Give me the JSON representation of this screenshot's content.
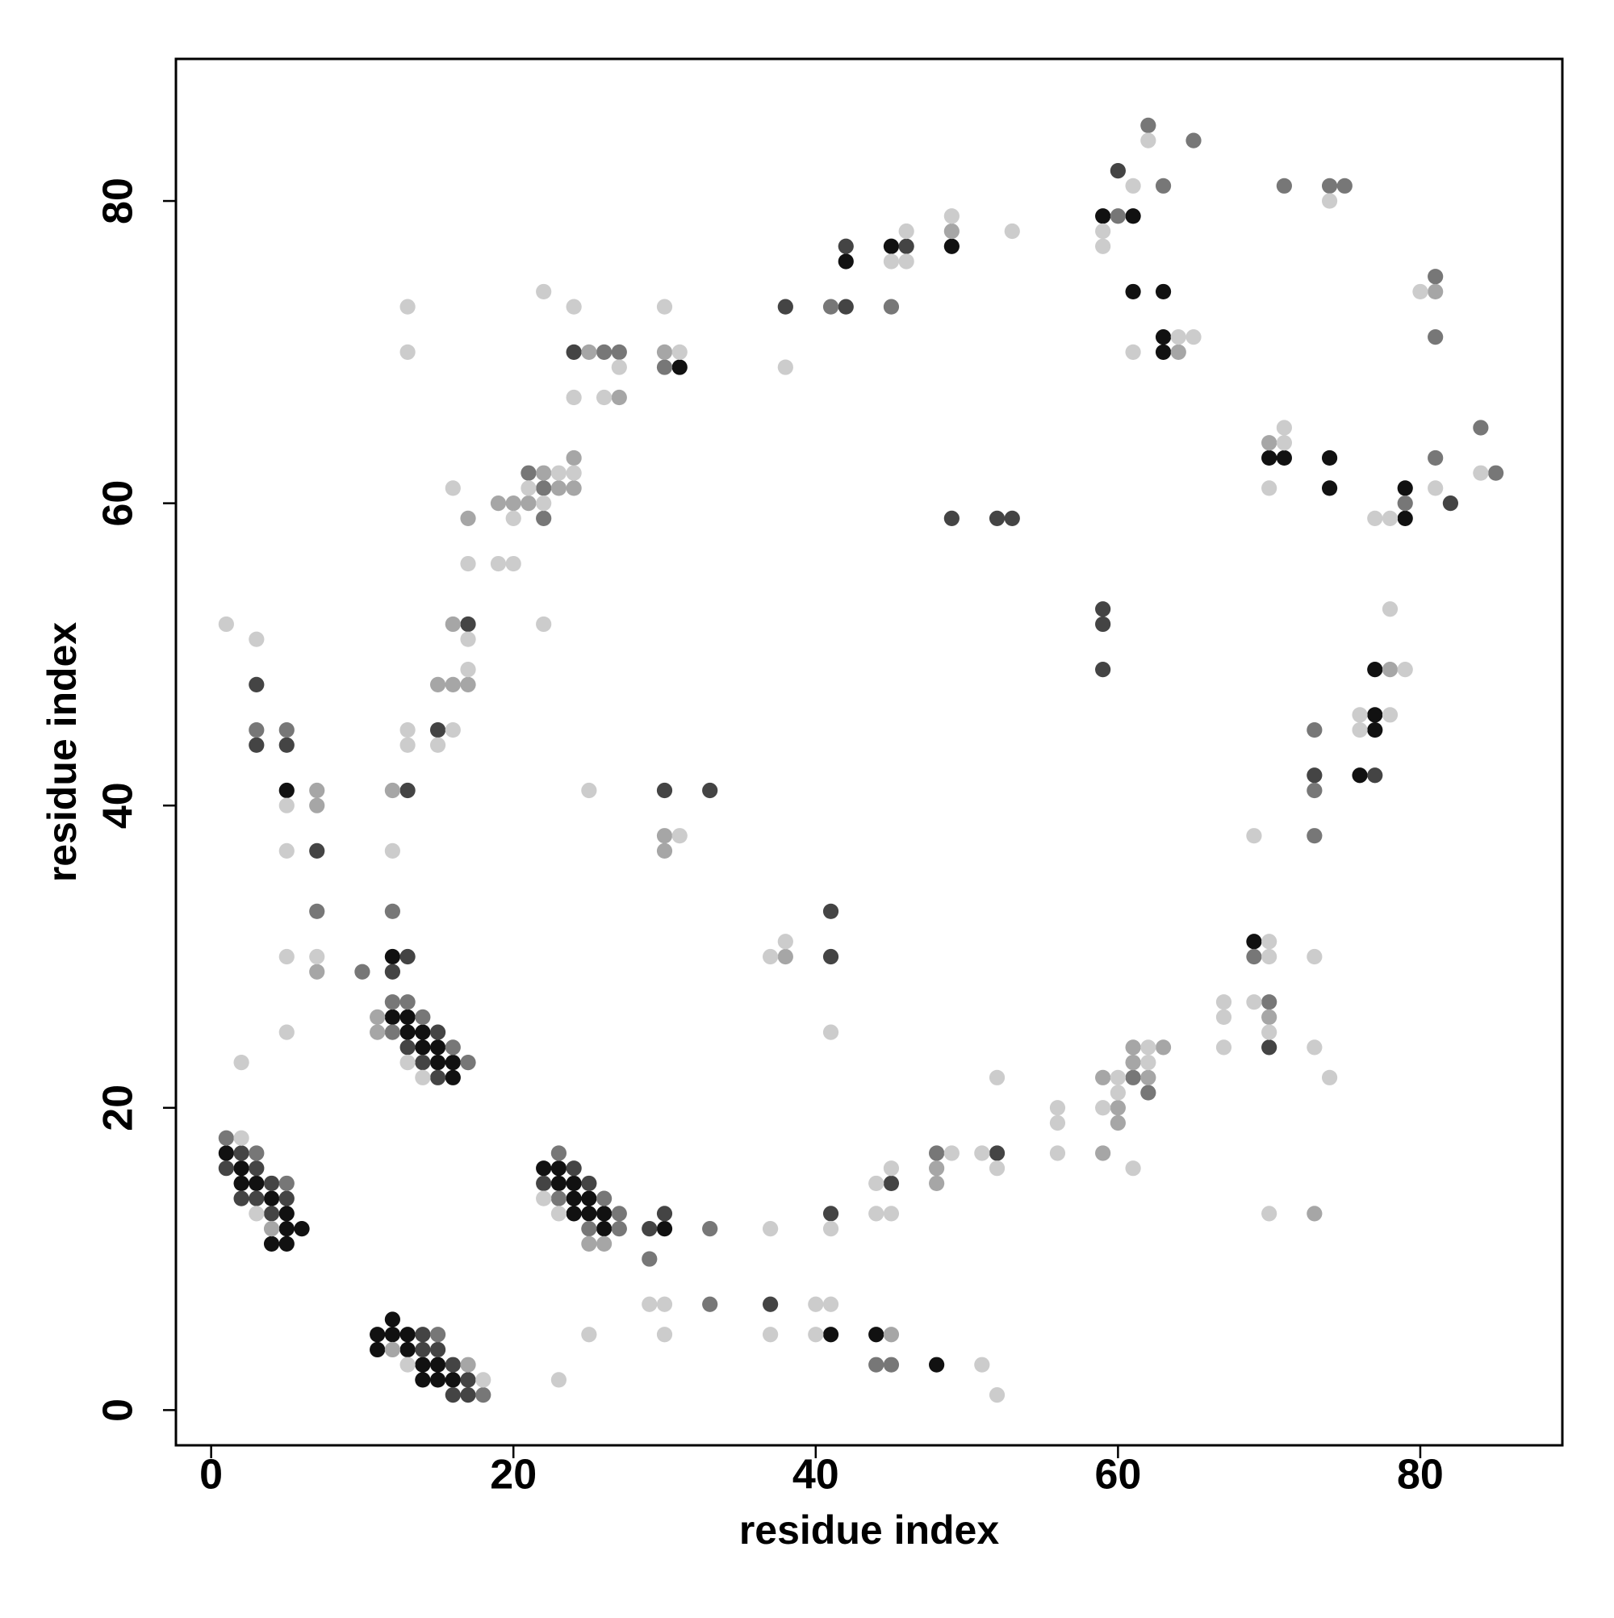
{
  "chart_data": {
    "type": "scatter",
    "x_label": "residue index",
    "y_label": "residue index",
    "xlim": [
      -2.33,
      89.4
    ],
    "ylim": [
      -2.33,
      89.4
    ],
    "xticks": [
      0,
      20,
      40,
      60,
      80
    ],
    "yticks": [
      0,
      20,
      40,
      60,
      80
    ],
    "grid": false,
    "series": [
      {
        "color": "#111111",
        "x": [
          1,
          2,
          2,
          3,
          4,
          5,
          5,
          6,
          4,
          5,
          5,
          12,
          12,
          13,
          13,
          14,
          14,
          15,
          15,
          16,
          16,
          12,
          11,
          12,
          13,
          11,
          13,
          14,
          15,
          14,
          15,
          16,
          22,
          23,
          23,
          24,
          24,
          25,
          24,
          25,
          26,
          26,
          30,
          31,
          42,
          45,
          49,
          41,
          44,
          48,
          59,
          61,
          61,
          63,
          63,
          63,
          69,
          76,
          77,
          77,
          77,
          70,
          71,
          74,
          74,
          79,
          79
        ],
        "values": [
          17,
          16,
          15,
          15,
          14,
          13,
          12,
          12,
          11,
          11,
          41,
          30,
          26,
          26,
          25,
          25,
          24,
          24,
          23,
          23,
          22,
          6,
          5,
          5,
          5,
          4,
          4,
          3,
          3,
          2,
          2,
          2,
          16,
          16,
          15,
          15,
          14,
          14,
          13,
          13,
          13,
          12,
          12,
          69,
          76,
          77,
          77,
          5,
          5,
          3,
          79,
          79,
          74,
          74,
          71,
          70,
          31,
          42,
          46,
          45,
          49,
          63,
          63,
          63,
          61,
          61,
          59
        ]
      },
      {
        "color": "#444444",
        "x": [
          2,
          1,
          3,
          4,
          2,
          3,
          5,
          4,
          3,
          3,
          5,
          7,
          13,
          12,
          15,
          13,
          14,
          15,
          13,
          15,
          17,
          14,
          14,
          15,
          16,
          17,
          16,
          17,
          24,
          22,
          25,
          29,
          30,
          24,
          30,
          33,
          38,
          42,
          42,
          46,
          41,
          41,
          41,
          37,
          45,
          52,
          49,
          52,
          53,
          59,
          59,
          59,
          60,
          70,
          73,
          77,
          82
        ],
        "values": [
          17,
          16,
          16,
          15,
          14,
          14,
          14,
          13,
          48,
          44,
          44,
          37,
          30,
          29,
          25,
          24,
          23,
          22,
          41,
          45,
          52,
          5,
          4,
          4,
          3,
          2,
          1,
          1,
          16,
          15,
          15,
          12,
          13,
          70,
          41,
          41,
          73,
          73,
          77,
          77,
          33,
          30,
          13,
          7,
          15,
          17,
          59,
          59,
          59,
          53,
          52,
          49,
          82,
          24,
          42,
          42,
          60
        ]
      },
      {
        "color": "#777777",
        "x": [
          1,
          3,
          5,
          3,
          5,
          7,
          10,
          12,
          13,
          14,
          12,
          16,
          17,
          12,
          15,
          18,
          23,
          23,
          26,
          27,
          25,
          27,
          29,
          33,
          33,
          21,
          22,
          22,
          26,
          27,
          30,
          41,
          45,
          44,
          45,
          48,
          61,
          62,
          60,
          62,
          63,
          65,
          69,
          70,
          73,
          73,
          73,
          79,
          81,
          84,
          85,
          71,
          74,
          75,
          81,
          81
        ],
        "values": [
          18,
          17,
          15,
          45,
          45,
          33,
          29,
          27,
          27,
          26,
          25,
          24,
          23,
          33,
          5,
          1,
          17,
          14,
          14,
          13,
          12,
          12,
          10,
          12,
          7,
          62,
          61,
          59,
          70,
          70,
          69,
          73,
          73,
          3,
          3,
          17,
          22,
          21,
          79,
          85,
          81,
          84,
          30,
          27,
          45,
          41,
          38,
          60,
          63,
          65,
          62,
          81,
          81,
          81,
          75,
          71
        ]
      },
      {
        "color": "#a6a6a6",
        "x": [
          4,
          7,
          7,
          7,
          11,
          11,
          12,
          15,
          16,
          17,
          16,
          17,
          12,
          17,
          25,
          26,
          19,
          20,
          22,
          23,
          24,
          21,
          24,
          25,
          27,
          30,
          30,
          30,
          38,
          49,
          45,
          48,
          48,
          59,
          60,
          60,
          61,
          62,
          61,
          63,
          59,
          64,
          70,
          73,
          78,
          70,
          81
        ],
        "values": [
          12,
          41,
          40,
          29,
          26,
          25,
          41,
          48,
          48,
          48,
          52,
          59,
          4,
          3,
          11,
          11,
          60,
          60,
          62,
          61,
          61,
          60,
          63,
          70,
          67,
          70,
          38,
          37,
          30,
          78,
          5,
          16,
          15,
          22,
          20,
          19,
          23,
          22,
          24,
          24,
          17,
          70,
          26,
          13,
          49,
          64,
          74
        ]
      },
      {
        "color": "#cccccc",
        "x": [
          2,
          3,
          1,
          3,
          5,
          5,
          5,
          5,
          2,
          7,
          13,
          14,
          12,
          13,
          13,
          13,
          13,
          15,
          16,
          17,
          17,
          16,
          17,
          13,
          18,
          22,
          23,
          29,
          30,
          30,
          25,
          23,
          20,
          23,
          24,
          21,
          22,
          19,
          20,
          22,
          22,
          24,
          27,
          24,
          26,
          30,
          31,
          25,
          31,
          38,
          45,
          46,
          46,
          49,
          53,
          37,
          38,
          41,
          41,
          37,
          40,
          41,
          40,
          37,
          51,
          52,
          44,
          45,
          44,
          45,
          49,
          51,
          52,
          52,
          56,
          56,
          56,
          60,
          59,
          60,
          62,
          62,
          61,
          59,
          59,
          61,
          62,
          61,
          64,
          65,
          67,
          67,
          67,
          70,
          70,
          69,
          70,
          69,
          70,
          73,
          73,
          74,
          76,
          78,
          76,
          79,
          78,
          71,
          71,
          70,
          77,
          78,
          81,
          84,
          74,
          80
        ],
        "values": [
          18,
          13,
          52,
          51,
          40,
          37,
          30,
          25,
          23,
          30,
          23,
          22,
          37,
          73,
          70,
          45,
          44,
          44,
          45,
          49,
          51,
          61,
          56,
          3,
          2,
          14,
          13,
          7,
          7,
          5,
          5,
          2,
          59,
          62,
          62,
          61,
          60,
          56,
          56,
          52,
          74,
          73,
          69,
          67,
          67,
          73,
          70,
          41,
          38,
          69,
          76,
          76,
          78,
          79,
          78,
          30,
          31,
          25,
          12,
          12,
          7,
          7,
          5,
          5,
          3,
          1,
          15,
          16,
          13,
          13,
          17,
          17,
          16,
          22,
          20,
          19,
          17,
          22,
          20,
          21,
          23,
          24,
          16,
          78,
          77,
          81,
          84,
          70,
          71,
          71,
          27,
          26,
          24,
          31,
          30,
          27,
          25,
          38,
          13,
          30,
          24,
          22,
          46,
          46,
          45,
          49,
          53,
          64,
          65,
          61,
          59,
          59,
          61,
          62,
          80,
          74
        ]
      }
    ]
  }
}
